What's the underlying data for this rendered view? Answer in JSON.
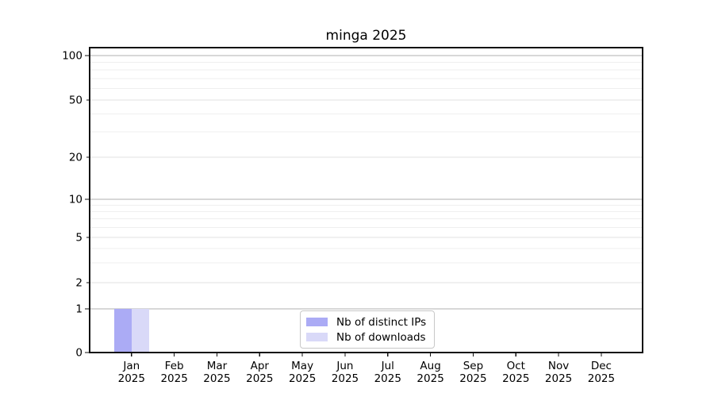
{
  "figure": {
    "title": "minga 2025"
  },
  "legend": {
    "position": "lower center",
    "items": [
      {
        "label": "Nb of distinct IPs",
        "color": "#ababf5"
      },
      {
        "label": "Nb of downloads",
        "color": "#d9d9f8"
      }
    ]
  },
  "chart_data": {
    "type": "bar",
    "title": "minga 2025",
    "categories": [
      "Jan 2025",
      "Feb 2025",
      "Mar 2025",
      "Apr 2025",
      "May 2025",
      "Jun 2025",
      "Jul 2025",
      "Aug 2025",
      "Sep 2025",
      "Oct 2025",
      "Nov 2025",
      "Dec 2025"
    ],
    "series": [
      {
        "name": "Nb of distinct IPs",
        "color": "#ababf5",
        "values": [
          1,
          0,
          0,
          0,
          0,
          0,
          0,
          0,
          0,
          0,
          0,
          0
        ]
      },
      {
        "name": "Nb of downloads",
        "color": "#d9d9f8",
        "values": [
          1,
          0,
          0,
          0,
          0,
          0,
          0,
          0,
          0,
          0,
          0,
          0
        ]
      }
    ],
    "xlabel": "",
    "ylabel": "",
    "y_axis": {
      "scale": "symlog-like",
      "labeled_ticks": [
        0,
        1,
        2,
        5,
        10,
        20,
        50,
        100
      ],
      "tick_labels": [
        "0",
        "1",
        "2",
        "5",
        "10",
        "20",
        "50",
        "100"
      ],
      "decade_ticks": [
        0,
        1,
        10,
        100
      ],
      "minor_gridlines": [
        3,
        4,
        6,
        7,
        8,
        9,
        30,
        40,
        60,
        70,
        80,
        90
      ],
      "ylim": [
        0,
        114
      ]
    },
    "grid": true,
    "legend_position": "lower center",
    "bar_group": "side-by-side, Jan bars reach value 1"
  }
}
